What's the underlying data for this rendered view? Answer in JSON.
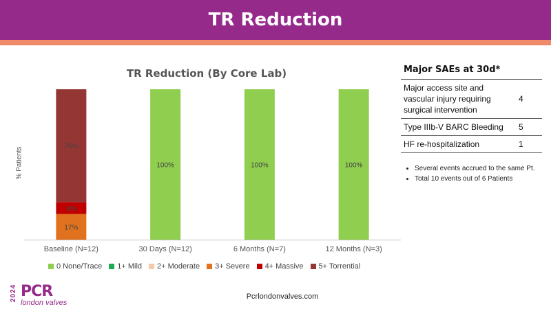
{
  "header": {
    "title": "TR Reduction"
  },
  "chart_data": {
    "type": "bar",
    "title": "TR Reduction (By Core Lab)",
    "ylabel": "% Patients",
    "xlabel": "",
    "ylim": [
      0,
      100
    ],
    "stacked": true,
    "categories": [
      "Baseline (N=12)",
      "30 Days (N=12)",
      "6 Months (N=7)",
      "12 Months (N=3)"
    ],
    "series": [
      {
        "name": "0 None/Trace",
        "color": "#8fce4e",
        "values": [
          0,
          100,
          100,
          100
        ],
        "labels": [
          "",
          "100%",
          "100%",
          "100%"
        ]
      },
      {
        "name": "1+ Mild",
        "color": "#1faa55",
        "values": [
          0,
          0,
          0,
          0
        ],
        "labels": [
          "",
          "",
          "",
          ""
        ]
      },
      {
        "name": "2+ Moderate",
        "color": "#f7c9a9",
        "values": [
          0,
          0,
          0,
          0
        ],
        "labels": [
          "",
          "",
          "",
          ""
        ]
      },
      {
        "name": "3+ Severe",
        "color": "#e0711e",
        "values": [
          17,
          0,
          0,
          0
        ],
        "labels": [
          "17%",
          "",
          "",
          ""
        ]
      },
      {
        "name": "4+ Massive",
        "color": "#c00000",
        "values": [
          8,
          0,
          0,
          0
        ],
        "labels": [
          "8%",
          "",
          "",
          ""
        ]
      },
      {
        "name": "5+ Torrential",
        "color": "#943634",
        "values": [
          75,
          0,
          0,
          0
        ],
        "labels": [
          "75%",
          "",
          "",
          ""
        ]
      }
    ],
    "legend_position": "bottom",
    "grid": false
  },
  "sae": {
    "title": "Major SAEs at 30d*",
    "rows": [
      {
        "label": "Major access site and vascular injury requiring surgical intervention",
        "value": "4"
      },
      {
        "label": "Type IIIb-V BARC Bleeding",
        "value": "5"
      },
      {
        "label": "HF re-hospitalization",
        "value": "1"
      }
    ],
    "notes": [
      "Several events accrued to the same Pt.",
      "Total 10 events out of 6 Patients"
    ]
  },
  "footer": {
    "url": "Pcrlondonvalves.com"
  },
  "logo": {
    "year": "2024",
    "brand": "PCR",
    "sub": "london valves"
  }
}
